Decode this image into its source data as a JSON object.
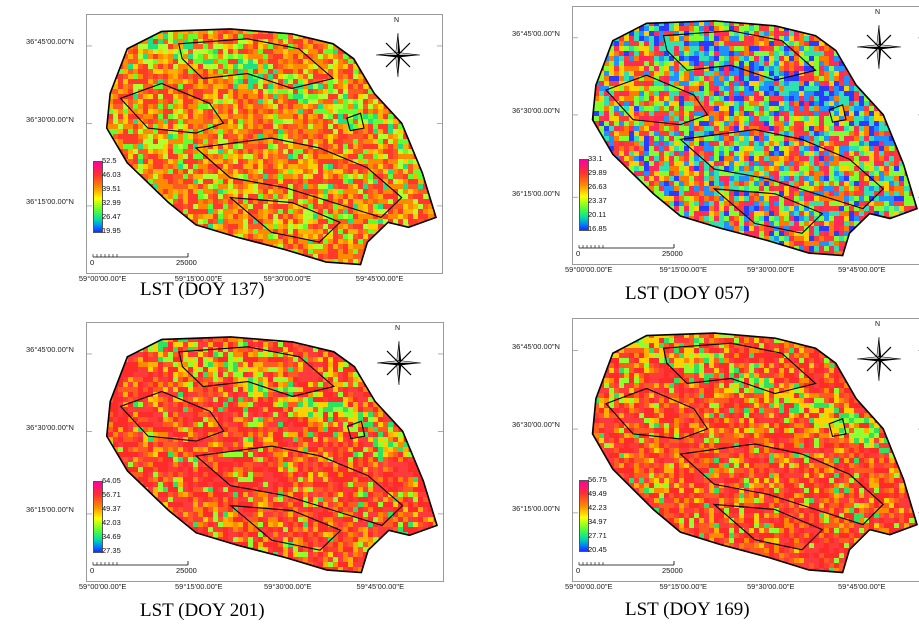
{
  "colors": {
    "hot": "#ff3030",
    "mid": "#ff8a00",
    "warm": "#ffd000",
    "cool": "#60ff30",
    "cold": "#1a2aff",
    "boundary": "#000000"
  },
  "latitudes": [
    "36°45'00.00\"N",
    "36°30'00.00\"N",
    "36°15'00.00\"N"
  ],
  "longitudes": [
    "59°00'00.00\"E",
    "59°15'00.00\"E",
    "59°30'00.00\"E",
    "59°45'00.00\"E"
  ],
  "north_label": "N",
  "scale": {
    "start": "0",
    "end": "25000"
  },
  "panels": [
    {
      "caption": "LST (DOY 137)",
      "legend": [
        "52.5",
        "46.03",
        "39.51",
        "32.99",
        "26.47",
        "19.95"
      ],
      "style": "warm"
    },
    {
      "caption": "LST (DOY 057)",
      "legend": [
        "33.1",
        "29.89",
        "26.63",
        "23.37",
        "20.11",
        "16.85"
      ],
      "style": "cool"
    },
    {
      "caption": "LST (DOY 201)",
      "legend": [
        "64.05",
        "56.71",
        "49.37",
        "42.03",
        "34.69",
        "27.35"
      ],
      "style": "hot"
    },
    {
      "caption": "LST (DOY 169)",
      "legend": [
        "56.75",
        "49.49",
        "42.23",
        "34.97",
        "27.71",
        "20.45"
      ],
      "style": "hot"
    }
  ]
}
